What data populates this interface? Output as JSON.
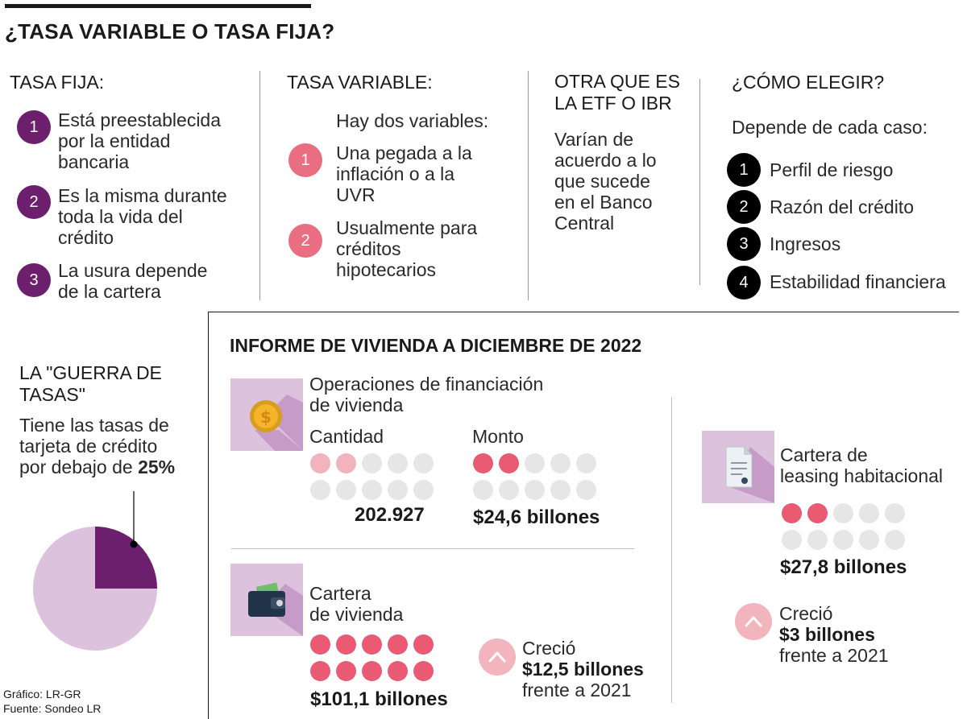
{
  "header": {
    "title": "¿TASA VARIABLE O TASA FIJA?"
  },
  "fija": {
    "title": "TASA FIJA:",
    "items": [
      {
        "num": "1",
        "text": [
          "Está preestablecida",
          "por la entidad",
          "bancaria"
        ]
      },
      {
        "num": "2",
        "text": [
          "Es la misma durante",
          "toda la vida del",
          "crédito"
        ]
      },
      {
        "num": "3",
        "text": [
          "La usura depende",
          "de la cartera"
        ]
      }
    ]
  },
  "variable": {
    "title": "TASA VARIABLE:",
    "intro": "Hay dos variables:",
    "items": [
      {
        "num": "1",
        "text": [
          "Una pegada a la",
          "inflación o a la",
          "UVR"
        ]
      },
      {
        "num": "2",
        "text": [
          "Usualmente para",
          "créditos",
          "hipotecarios"
        ]
      }
    ]
  },
  "otra": {
    "title": [
      "OTRA QUE ES",
      "LA ETF O IBR"
    ],
    "text": [
      "Varían de",
      "acuerdo a lo",
      "que sucede",
      "en el Banco",
      "Central"
    ]
  },
  "elegir": {
    "title": "¿CÓMO ELEGIR?",
    "intro": "Depende de cada caso:",
    "items": [
      {
        "num": "1",
        "text": "Perfil de riesgo"
      },
      {
        "num": "2",
        "text": "Razón del crédito"
      },
      {
        "num": "3",
        "text": "Ingresos"
      },
      {
        "num": "4",
        "text": "Estabilidad financiera"
      }
    ]
  },
  "guerra": {
    "title": [
      "LA \"GUERRA DE",
      "TASAS\""
    ],
    "text": [
      "Tiene las tasas de",
      "tarjeta de crédito"
    ],
    "text_last": "por debajo de ",
    "text_bold": "25%",
    "pie_share": 0.25,
    "pie_colors": {
      "main": "#dcc2dc",
      "slice": "#6b1f6d"
    }
  },
  "informe": {
    "title": "INFORME DE VIVIENDA A DICIEMBRE DE 2022",
    "operaciones": {
      "title": [
        "Operaciones de financiación",
        "de vivienda"
      ],
      "cantidad_label": "Cantidad",
      "cantidad_value": "202.927",
      "cantidad_filled": 2,
      "monto_label": "Monto",
      "monto_value": "$24,6 billones",
      "monto_filled": 2
    },
    "cartera": {
      "title": [
        "Cartera",
        "de vivienda"
      ],
      "value": "$101,1 billones",
      "filled": 10,
      "crecio_label": "Creció",
      "crecio_value": "$12,5 billones",
      "crecio_suffix": "frente a 2021"
    },
    "leasing": {
      "title": [
        "Cartera de",
        "leasing habitacional"
      ],
      "value": "$27,8 billones",
      "filled": 2,
      "crecio_label": "Creció",
      "crecio_value": "$3 billones",
      "crecio_suffix": "frente a 2021"
    }
  },
  "footer": {
    "grafico": "Gráfico: LR-GR",
    "fuente": "Fuente: Sondeo LR"
  },
  "colors": {
    "purple": "#6b1f6d",
    "pink": "#ea6e82",
    "dot_on": "#ea5a73",
    "dot_soft": "#f1b3be",
    "dot_off": "#e6e6e6",
    "tile": "#dcc2dc",
    "tile_shadow": "#c79bc7"
  }
}
